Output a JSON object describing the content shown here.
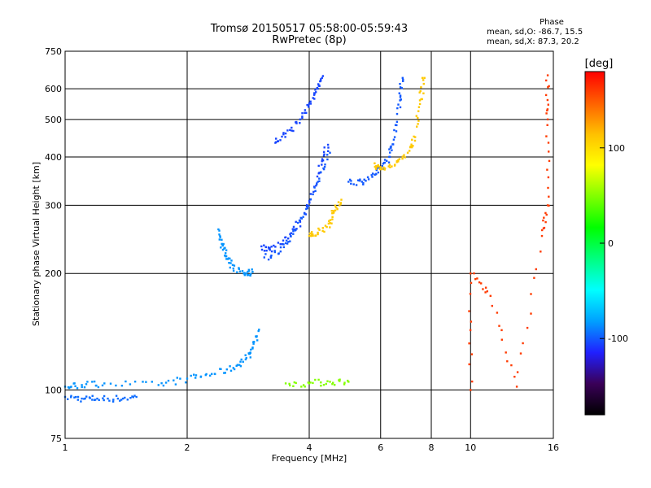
{
  "chart_data": {
    "type": "scatter",
    "title": "Tromsø 20150517 05:58:00-05:59:43",
    "subtitle": "RwPretec (8p)",
    "xlabel": "Frequency [MHz]",
    "ylabel": "Stationary phase Virtual Height [km]",
    "x_scale": "log",
    "y_scale": "log",
    "xlim": [
      1,
      16
    ],
    "ylim": [
      75,
      750
    ],
    "x_ticks": [
      1,
      2,
      4,
      6,
      8,
      10,
      16
    ],
    "y_ticks": [
      75,
      100,
      200,
      300,
      400,
      500,
      600,
      750
    ],
    "grid": true,
    "stats": {
      "title": "Phase",
      "line1": "mean, sd,O: -86.7, 15.5",
      "line2": "mean, sd,X:  87.3, 20.2"
    },
    "colorbar": {
      "label": "[deg]",
      "range": [
        -180,
        180
      ],
      "ticks": [
        100,
        0,
        -100
      ],
      "colors": [
        "#000000",
        "#3a0058",
        "#2020ff",
        "#00a0ff",
        "#00ffff",
        "#00ff80",
        "#00ff00",
        "#80ff00",
        "#ffff00",
        "#ffc000",
        "#ff6000",
        "#ff0000"
      ]
    },
    "series": [
      {
        "values": [
          [
            1.0,
            96
          ],
          [
            1.1,
            95
          ],
          [
            1.2,
            95
          ],
          [
            1.35,
            95
          ],
          [
            1.5,
            96
          ]
        ],
        "phase": -95
      },
      {
        "values": [
          [
            1.0,
            102
          ],
          [
            1.1,
            103
          ],
          [
            1.25,
            104
          ],
          [
            1.7,
            103
          ],
          [
            2.0,
            107
          ],
          [
            2.3,
            110
          ],
          [
            2.6,
            114
          ],
          [
            2.8,
            121
          ],
          [
            2.9,
            128
          ],
          [
            3.0,
            142
          ]
        ],
        "phase": -85
      },
      {
        "values": [
          [
            2.4,
            258
          ],
          [
            2.45,
            236
          ],
          [
            2.5,
            218
          ],
          [
            2.6,
            206
          ],
          [
            2.8,
            200
          ],
          [
            2.9,
            202
          ]
        ],
        "phase": -85
      },
      {
        "values": [
          [
            3.05,
            235
          ],
          [
            3.2,
            230
          ],
          [
            3.5,
            248
          ],
          [
            3.8,
            272
          ],
          [
            4.1,
            325
          ],
          [
            4.3,
            390
          ],
          [
            4.45,
            430
          ]
        ],
        "phase": -105
      },
      {
        "values": [
          [
            3.1,
            220
          ],
          [
            3.4,
            228
          ],
          [
            3.6,
            250
          ],
          [
            3.9,
            285
          ],
          [
            4.2,
            345
          ],
          [
            4.5,
            410
          ]
        ],
        "phase": -100
      },
      {
        "values": [
          [
            3.3,
            435
          ],
          [
            3.5,
            460
          ],
          [
            3.8,
            500
          ],
          [
            4.0,
            550
          ],
          [
            4.2,
            600
          ],
          [
            4.3,
            640
          ]
        ],
        "phase": -105
      },
      {
        "values": [
          [
            4.0,
            250
          ],
          [
            4.2,
            255
          ],
          [
            4.5,
            270
          ],
          [
            4.6,
            290
          ],
          [
            4.8,
            310
          ]
        ],
        "phase": 110
      },
      {
        "values": [
          [
            5.0,
            345
          ],
          [
            5.4,
            345
          ],
          [
            5.8,
            360
          ],
          [
            6.0,
            375
          ],
          [
            6.3,
            400
          ],
          [
            6.5,
            450
          ],
          [
            6.7,
            560
          ],
          [
            6.8,
            640
          ]
        ],
        "phase": -100
      },
      {
        "values": [
          [
            5.8,
            385
          ],
          [
            6.0,
            372
          ],
          [
            6.5,
            380
          ],
          [
            7.0,
            410
          ],
          [
            7.3,
            450
          ],
          [
            7.5,
            560
          ],
          [
            7.7,
            640
          ]
        ],
        "phase": 110
      },
      {
        "values": [
          [
            3.5,
            104
          ],
          [
            4.0,
            104
          ],
          [
            4.5,
            105
          ],
          [
            5.0,
            105
          ]
        ],
        "phase": 50
      },
      {
        "values": [
          [
            10.0,
            100
          ],
          [
            10.0,
            200
          ],
          [
            11.2,
            175
          ],
          [
            13.0,
            102
          ],
          [
            15.0,
            250
          ],
          [
            15.5,
            300
          ],
          [
            15.5,
            500
          ],
          [
            15.5,
            650
          ]
        ],
        "phase": 160
      }
    ]
  }
}
